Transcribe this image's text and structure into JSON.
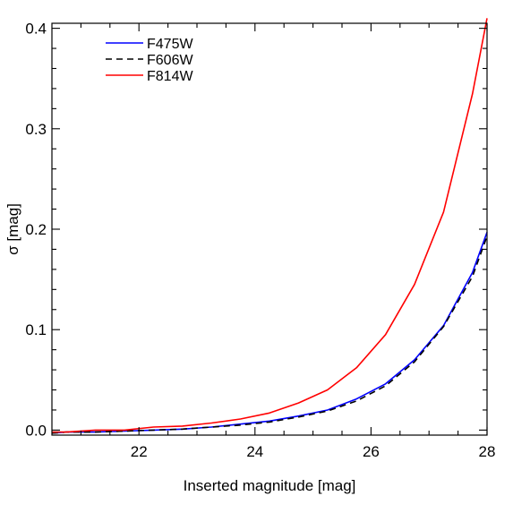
{
  "chart_data": {
    "type": "line",
    "xlabel": "Inserted magnitude [mag]",
    "ylabel": "σ [mag]",
    "xlim": [
      20.5,
      28
    ],
    "ylim": [
      -0.005,
      0.405
    ],
    "xticks": [
      22,
      24,
      26,
      28
    ],
    "xtick_labels": [
      "22",
      "24",
      "26",
      "28"
    ],
    "yticks": [
      0.0,
      0.1,
      0.2,
      0.3,
      0.4
    ],
    "ytick_labels": [
      "0.0",
      "0.1",
      "0.2",
      "0.3",
      "0.4"
    ],
    "legend_position": "top-left",
    "series": [
      {
        "name": "F475W",
        "color": "#0000ff",
        "dash": "solid",
        "x": [
          20.5,
          20.75,
          21.25,
          21.75,
          22.25,
          22.75,
          23.25,
          23.75,
          24.25,
          24.75,
          25.25,
          25.75,
          26.25,
          26.75,
          27.25,
          27.75,
          28.0
        ],
        "y": [
          -0.003,
          -0.002,
          -0.002,
          -0.001,
          0.0,
          0.001,
          0.003,
          0.006,
          0.009,
          0.014,
          0.02,
          0.031,
          0.046,
          0.07,
          0.104,
          0.157,
          0.197
        ]
      },
      {
        "name": "F606W",
        "color": "#000000",
        "dash": "dashed",
        "x": [
          20.5,
          20.75,
          21.25,
          21.75,
          22.25,
          22.75,
          23.25,
          23.75,
          24.25,
          24.75,
          25.25,
          25.75,
          26.25,
          26.75,
          27.25,
          27.75,
          28.0
        ],
        "y": [
          -0.003,
          -0.002,
          -0.002,
          -0.001,
          0.0,
          0.001,
          0.003,
          0.005,
          0.008,
          0.013,
          0.019,
          0.029,
          0.044,
          0.068,
          0.103,
          0.153,
          0.193
        ]
      },
      {
        "name": "F814W",
        "color": "#ff0000",
        "dash": "solid",
        "x": [
          20.5,
          20.75,
          21.25,
          21.75,
          22.25,
          22.75,
          23.25,
          23.75,
          24.25,
          24.75,
          25.25,
          25.75,
          26.25,
          26.75,
          27.25,
          27.75,
          28.0
        ],
        "y": [
          -0.002,
          -0.002,
          0.0,
          0.0,
          0.003,
          0.004,
          0.007,
          0.011,
          0.017,
          0.027,
          0.04,
          0.062,
          0.095,
          0.145,
          0.217,
          0.335,
          0.41
        ]
      }
    ]
  }
}
